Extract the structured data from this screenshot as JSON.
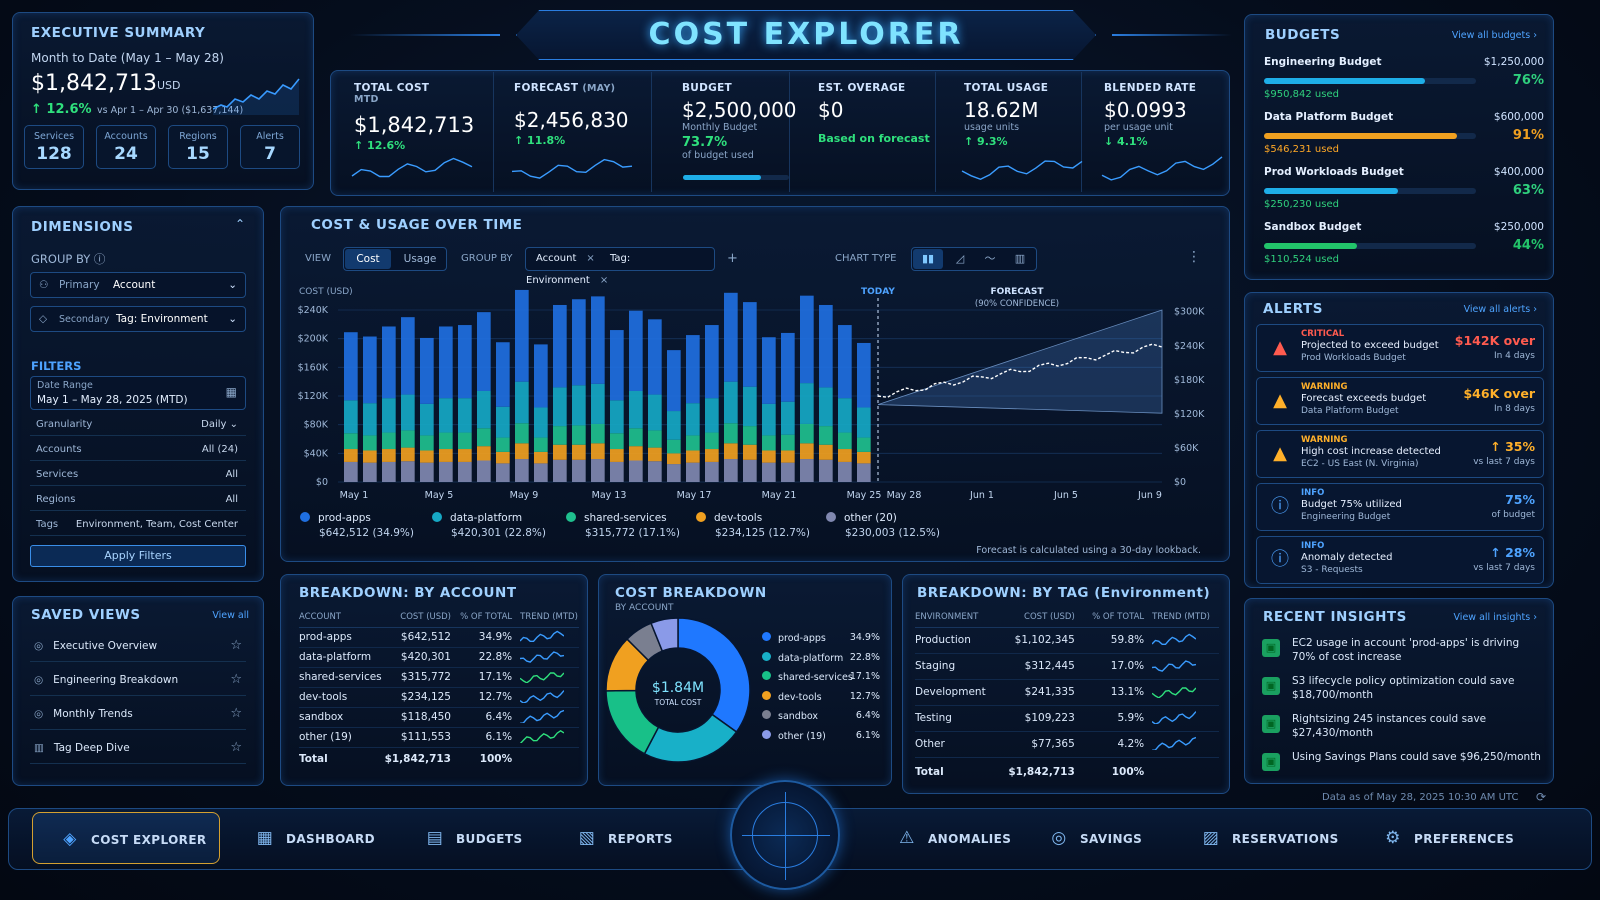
{
  "header": {
    "title": "COST EXPLORER"
  },
  "exec": {
    "title": "EXECUTIVE SUMMARY",
    "period": "Month to Date (May 1 – May 28)",
    "total": "$1,842,713",
    "currency": "USD",
    "change": "↑ 12.6%",
    "compare": "vs Apr 1 – Apr 30 ($1,637,144)",
    "stats": [
      {
        "label": "Services",
        "value": "128"
      },
      {
        "label": "Accounts",
        "value": "24"
      },
      {
        "label": "Regions",
        "value": "15"
      },
      {
        "label": "Alerts",
        "value": "7"
      }
    ]
  },
  "kpis": [
    {
      "title": "TOTAL COST",
      "sub": "MTD",
      "value": "$1,842,713",
      "note": "↑ 12.6%",
      "note2": ""
    },
    {
      "title": "FORECAST",
      "sub": "(MAY)",
      "value": "$2,456,830",
      "note": "↑ 11.8%",
      "note2": ""
    },
    {
      "title": "BUDGET",
      "sub": "Monthly Budget",
      "value": "$2,500,000",
      "note": "73.7%",
      "note2": "of budget used"
    },
    {
      "title": "EST. OVERAGE",
      "sub": "",
      "value": "$0",
      "note": "Based on forecast",
      "note2": ""
    },
    {
      "title": "TOTAL USAGE",
      "sub": "usage units",
      "value": "18.62M",
      "note": "↑ 9.3%",
      "note2": ""
    },
    {
      "title": "BLENDED RATE",
      "sub": "per usage unit",
      "value": "$0.0993",
      "note": "↓ 4.1%",
      "note2": ""
    }
  ],
  "dimensions": {
    "title": "DIMENSIONS",
    "group_by": "GROUP BY",
    "primary_label": "Primary",
    "primary_value": "Account",
    "secondary_label": "Secondary",
    "secondary_value": "Tag: Environment",
    "filters_title": "FILTERS",
    "date_label": "Date Range",
    "date_value": "May 1 – May 28, 2025 (MTD)",
    "rows": [
      {
        "label": "Granularity",
        "value": "Daily ⌄"
      },
      {
        "label": "Accounts",
        "value": "All (24)"
      },
      {
        "label": "Services",
        "value": "All"
      },
      {
        "label": "Regions",
        "value": "All"
      },
      {
        "label": "Tags",
        "value": "Environment, Team, Cost Center"
      }
    ],
    "apply": "Apply Filters"
  },
  "saved": {
    "title": "SAVED VIEWS",
    "view_all": "View all",
    "items": [
      "Executive Overview",
      "Engineering Breakdown",
      "Monthly Trends",
      "Tag Deep Dive"
    ]
  },
  "chart": {
    "title": "COST & USAGE OVER TIME",
    "view_label": "VIEW",
    "view_cost": "Cost",
    "view_usage": "Usage",
    "group_label": "GROUP BY",
    "chip1": "Account",
    "chip2": "Tag: Environment",
    "chart_type": "CHART TYPE",
    "today": "TODAY",
    "forecast": "FORECAST",
    "forecast_sub": "(90% CONFIDENCE)",
    "foot": "Forecast is calculated using a 30-day lookback."
  },
  "chart_data": {
    "type": "bar",
    "ylabel": "COST (USD)",
    "ylim": [
      0,
      240000
    ],
    "yticks": [
      "$0",
      "$40K",
      "$80K",
      "$120K",
      "$160K",
      "$200K",
      "$240K"
    ],
    "y2ticks": [
      "$0",
      "$60K",
      "$120K",
      "$180K",
      "$240K",
      "$300K"
    ],
    "xticks": [
      "May 1",
      "May 5",
      "May 9",
      "May 13",
      "May 17",
      "May 21",
      "May 25",
      "May 28",
      "Jun 1",
      "Jun 5",
      "Jun 9"
    ],
    "series": [
      {
        "name": "prod-apps",
        "color": "#1f6fe0",
        "values": [
          95,
          93,
          100,
          108,
          92,
          100,
          102,
          110,
          90,
          128,
          88,
          115,
          120,
          122,
          98,
          112,
          105,
          85,
          95,
          102,
          124,
          118,
          93,
          96,
          122,
          115,
          102,
          90
        ]
      },
      {
        "name": "data-platform",
        "color": "#16a8c4",
        "values": [
          46,
          45,
          48,
          50,
          44,
          48,
          48,
          52,
          43,
          58,
          42,
          54,
          56,
          56,
          46,
          52,
          50,
          40,
          45,
          48,
          58,
          55,
          44,
          46,
          57,
          54,
          48,
          42
        ]
      },
      {
        "name": "shared-services",
        "color": "#1fc08e",
        "values": [
          22,
          21,
          23,
          24,
          21,
          23,
          23,
          25,
          20,
          28,
          20,
          26,
          27,
          27,
          22,
          25,
          24,
          19,
          21,
          23,
          28,
          26,
          21,
          22,
          27,
          26,
          23,
          20
        ]
      },
      {
        "name": "dev-tools",
        "color": "#f0a020",
        "values": [
          18,
          17,
          18,
          19,
          17,
          18,
          18,
          20,
          16,
          22,
          16,
          21,
          21,
          22,
          18,
          20,
          19,
          15,
          17,
          18,
          22,
          21,
          17,
          17,
          22,
          21,
          18,
          16
        ]
      },
      {
        "name": "other (20)",
        "color": "#8088b0",
        "values": [
          28,
          27,
          28,
          29,
          27,
          28,
          28,
          30,
          26,
          32,
          26,
          31,
          31,
          32,
          28,
          30,
          29,
          25,
          27,
          28,
          32,
          31,
          27,
          27,
          32,
          31,
          28,
          26
        ]
      }
    ],
    "legend": [
      {
        "name": "prod-apps",
        "val": "$642,512 (34.9%)",
        "color": "#1f6fe0"
      },
      {
        "name": "data-platform",
        "val": "$420,301 (22.8%)",
        "color": "#16a8c4"
      },
      {
        "name": "shared-services",
        "val": "$315,772 (17.1%)",
        "color": "#1fc08e"
      },
      {
        "name": "dev-tools",
        "val": "$234,125 (12.7%)",
        "color": "#f0a020"
      },
      {
        "name": "other (20)",
        "val": "$230,003 (12.5%)",
        "color": "#8088b0"
      }
    ]
  },
  "acct": {
    "title": "BREAKDOWN: BY ACCOUNT",
    "headers": [
      "ACCOUNT",
      "COST (USD)",
      "% OF TOTAL",
      "TREND (MTD)"
    ],
    "rows": [
      [
        "prod-apps",
        "$642,512",
        "34.9%"
      ],
      [
        "data-platform",
        "$420,301",
        "22.8%"
      ],
      [
        "shared-services",
        "$315,772",
        "17.1%"
      ],
      [
        "dev-tools",
        "$234,125",
        "12.7%"
      ],
      [
        "sandbox",
        "$118,450",
        "6.4%"
      ],
      [
        "other (19)",
        "$111,553",
        "6.1%"
      ]
    ],
    "total": [
      "Total",
      "$1,842,713",
      "100%"
    ]
  },
  "donut": {
    "title": "COST BREAKDOWN",
    "sub": "BY ACCOUNT",
    "center": "$1.84M",
    "center_sub": "TOTAL COST",
    "slices": [
      {
        "name": "prod-apps",
        "pct": "34.9%",
        "v": 34.9,
        "color": "#1f78ff"
      },
      {
        "name": "data-platform",
        "pct": "22.8%",
        "v": 22.8,
        "color": "#18b0c8"
      },
      {
        "name": "shared-services",
        "pct": "17.1%",
        "v": 17.1,
        "color": "#18c088"
      },
      {
        "name": "dev-tools",
        "pct": "12.7%",
        "v": 12.7,
        "color": "#f0a020"
      },
      {
        "name": "sandbox",
        "pct": "6.4%",
        "v": 6.4,
        "color": "#7a7f90"
      },
      {
        "name": "other (19)",
        "pct": "6.1%",
        "v": 6.1,
        "color": "#8a9ae8"
      }
    ]
  },
  "tag": {
    "title": "BREAKDOWN: BY TAG (Environment)",
    "headers": [
      "ENVIRONMENT",
      "COST (USD)",
      "% OF TOTAL",
      "TREND (MTD)"
    ],
    "rows": [
      [
        "Production",
        "$1,102,345",
        "59.8%"
      ],
      [
        "Staging",
        "$312,445",
        "17.0%"
      ],
      [
        "Development",
        "$241,335",
        "13.1%"
      ],
      [
        "Testing",
        "$109,223",
        "5.9%"
      ],
      [
        "Other",
        "$77,365",
        "4.2%"
      ]
    ],
    "total": [
      "Total",
      "$1,842,713",
      "100%"
    ]
  },
  "budgets": {
    "title": "BUDGETS",
    "view_all": "View all budgets ›",
    "items": [
      {
        "name": "Engineering Budget",
        "amount": "$1,250,000",
        "pct": "76%",
        "used": "$950,842 used",
        "fill": 0.76,
        "color": "#1eaee8"
      },
      {
        "name": "Data Platform Budget",
        "amount": "$600,000",
        "pct": "91%",
        "used": "$546,231 used",
        "fill": 0.91,
        "color": "#f0a020"
      },
      {
        "name": "Prod Workloads Budget",
        "amount": "$400,000",
        "pct": "63%",
        "used": "$250,230 used",
        "fill": 0.63,
        "color": "#1eaee8"
      },
      {
        "name": "Sandbox Budget",
        "amount": "$250,000",
        "pct": "44%",
        "used": "$110,524 used",
        "fill": 0.44,
        "color": "#22c46a"
      }
    ]
  },
  "alerts": {
    "title": "ALERTS",
    "view_all": "View all alerts ›",
    "items": [
      {
        "level": "CRITICAL",
        "title": "Projected to exceed budget",
        "sub": "Prod Workloads Budget",
        "val": "$142K over",
        "vs": "In 4 days",
        "color": "#ff5b4f",
        "icon": "▲"
      },
      {
        "level": "WARNING",
        "title": "Forecast exceeds budget",
        "sub": "Data Platform Budget",
        "val": "$46K over",
        "vs": "In 8 days",
        "color": "#ffb02a",
        "icon": "▲"
      },
      {
        "level": "WARNING",
        "title": "High cost increase detected",
        "sub": "EC2 - US East (N. Virginia)",
        "val": "↑ 35%",
        "vs": "vs last 7 days",
        "color": "#ffb02a",
        "icon": "▲"
      },
      {
        "level": "INFO",
        "title": "Budget 75% utilized",
        "sub": "Engineering Budget",
        "val": "75%",
        "vs": "of budget",
        "color": "#4ea3ff",
        "icon": "ⓘ"
      },
      {
        "level": "INFO",
        "title": "Anomaly detected",
        "sub": "S3 - Requests",
        "val": "↑ 28%",
        "vs": "vs last 7 days",
        "color": "#4ea3ff",
        "icon": "ⓘ"
      }
    ]
  },
  "insights": {
    "title": "RECENT INSIGHTS",
    "view_all": "View all insights ›",
    "items": [
      "EC2 usage in account 'prod-apps' is driving 70% of cost increase",
      "S3 lifecycle policy optimization could save $18,700/month",
      "Rightsizing 245 instances could save $27,430/month",
      "Using Savings Plans could save $96,250/month"
    ],
    "asof": "Data as of May 28, 2025 10:30 AM UTC"
  },
  "nav": [
    "COST EXPLORER",
    "DASHBOARD",
    "BUDGETS",
    "REPORTS",
    "ANOMALIES",
    "SAVINGS",
    "RESERVATIONS",
    "PREFERENCES"
  ]
}
